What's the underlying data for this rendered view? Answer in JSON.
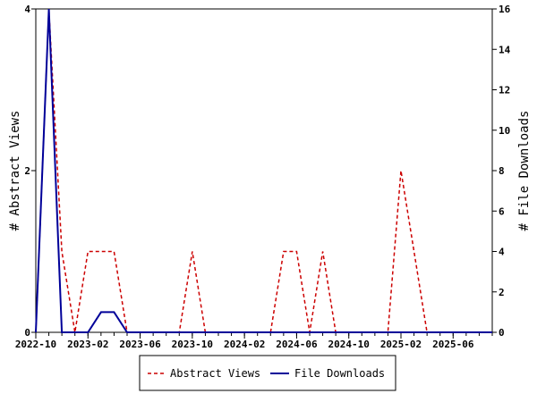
{
  "chart_data": {
    "type": "line",
    "x_tick_labels": [
      "2022-10",
      "2023-02",
      "2023-06",
      "2023-10",
      "2024-02",
      "2024-06",
      "2024-10",
      "2025-02",
      "2025-06"
    ],
    "x_months_range": [
      "2022-10",
      "2025-09"
    ],
    "y_left": {
      "label": "# Abstract Views",
      "ticks": [
        0,
        2,
        4
      ],
      "range": [
        0,
        4
      ]
    },
    "y_right": {
      "label": "# File Downloads",
      "ticks": [
        0,
        2,
        4,
        6,
        8,
        10,
        12,
        14,
        16
      ],
      "range": [
        0,
        16
      ]
    },
    "series": [
      {
        "name": "Abstract Views",
        "axis": "left",
        "color": "#cc0000",
        "dash": true,
        "x": [
          "2022-10",
          "2022-11",
          "2022-12",
          "2023-01",
          "2023-02",
          "2023-03",
          "2023-04",
          "2023-05",
          "2023-06",
          "2023-07",
          "2023-08",
          "2023-09",
          "2023-10",
          "2023-11",
          "2023-12",
          "2024-01",
          "2024-02",
          "2024-03",
          "2024-04",
          "2024-05",
          "2024-06",
          "2024-07",
          "2024-08",
          "2024-09",
          "2024-10",
          "2024-11",
          "2024-12",
          "2025-01",
          "2025-02",
          "2025-03",
          "2025-04",
          "2025-05",
          "2025-06",
          "2025-07",
          "2025-08",
          "2025-09"
        ],
        "y": [
          0,
          4,
          1,
          0,
          1,
          1,
          1,
          0,
          0,
          0,
          0,
          0,
          1,
          0,
          0,
          0,
          0,
          0,
          0,
          1,
          1,
          0,
          1,
          0,
          0,
          0,
          0,
          0,
          2,
          1,
          0,
          0,
          0,
          0,
          0,
          0
        ]
      },
      {
        "name": "File Downloads",
        "axis": "right",
        "color": "#000099",
        "dash": false,
        "x": [
          "2022-10",
          "2022-11",
          "2022-12",
          "2023-01",
          "2023-02",
          "2023-03",
          "2023-04",
          "2023-05",
          "2023-06",
          "2023-07",
          "2023-08",
          "2023-09",
          "2023-10",
          "2023-11",
          "2023-12",
          "2024-01",
          "2024-02",
          "2024-03",
          "2024-04",
          "2024-05",
          "2024-06",
          "2024-07",
          "2024-08",
          "2024-09",
          "2024-10",
          "2024-11",
          "2024-12",
          "2025-01",
          "2025-02",
          "2025-03",
          "2025-04",
          "2025-05",
          "2025-06",
          "2025-07",
          "2025-08",
          "2025-09"
        ],
        "y": [
          0,
          16,
          0,
          0,
          0,
          1,
          1,
          0,
          0,
          0,
          0,
          0,
          0,
          0,
          0,
          0,
          0,
          0,
          0,
          0,
          0,
          0,
          0,
          0,
          0,
          0,
          0,
          0,
          0,
          0,
          0,
          0,
          0,
          0,
          0,
          0
        ]
      }
    ],
    "legend": {
      "placement": "bottom",
      "entries": [
        "Abstract Views",
        "File Downloads"
      ]
    },
    "grid": false
  }
}
